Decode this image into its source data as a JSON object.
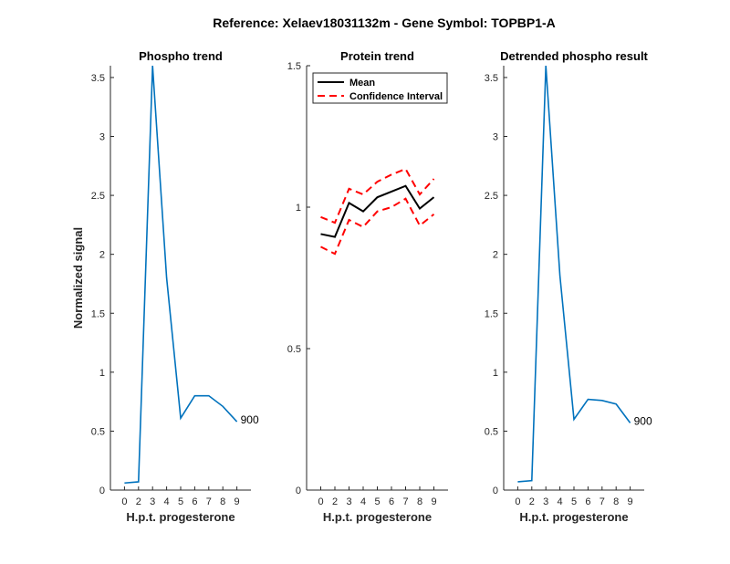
{
  "figure_title": "Reference:  Xelaev18031132m - Gene Symbol:  TOPBP1-A",
  "chart_data": [
    {
      "type": "line",
      "title": "Phospho trend",
      "xlabel": "H.p.t. progesterone",
      "ylabel": "Normalized signal",
      "xticks": [
        "0",
        "2",
        "3",
        "4",
        "5",
        "6",
        "7",
        "8",
        "9"
      ],
      "ylim": [
        0,
        3.6
      ],
      "yticks": [
        "0",
        "0.5",
        "1",
        "1.5",
        "2",
        "2.5",
        "3",
        "3.5"
      ],
      "series": [
        {
          "values": [
            0.06,
            0.07,
            3.6,
            1.8,
            0.61,
            0.8,
            0.8,
            0.71,
            0.58
          ],
          "color": "#0072BD"
        }
      ],
      "annotation": "900"
    },
    {
      "type": "line",
      "title": "Protein trend",
      "xlabel": "H.p.t. progesterone",
      "ylabel": "",
      "xticks": [
        "0",
        "2",
        "3",
        "4",
        "5",
        "6",
        "7",
        "8",
        "9"
      ],
      "ylim": [
        0,
        1.5
      ],
      "yticks": [
        "0",
        "0.5",
        "1",
        "1.5"
      ],
      "legend": {
        "location": "top-left",
        "entries": [
          "Mean",
          "Confidence Interval"
        ]
      },
      "series": [
        {
          "name": "Mean",
          "values": [
            0.905,
            0.895,
            1.015,
            0.985,
            1.035,
            1.055,
            1.075,
            0.995,
            1.035
          ],
          "color": "#000000",
          "style": "solid"
        },
        {
          "name": "Confidence Interval",
          "values": [
            0.965,
            0.945,
            1.065,
            1.045,
            1.09,
            1.115,
            1.135,
            1.045,
            1.1
          ],
          "color": "#ff0000",
          "style": "dashed"
        },
        {
          "name": "Confidence Interval",
          "values": [
            0.86,
            0.835,
            0.955,
            0.93,
            0.985,
            1.0,
            1.03,
            0.935,
            0.975
          ],
          "color": "#ff0000",
          "style": "dashed"
        }
      ]
    },
    {
      "type": "line",
      "title": "Detrended phospho result",
      "xlabel": "H.p.t. progesterone",
      "ylabel": "",
      "xticks": [
        "0",
        "2",
        "3",
        "4",
        "5",
        "6",
        "7",
        "8",
        "9"
      ],
      "ylim": [
        0,
        3.6
      ],
      "yticks": [
        "0",
        "0.5",
        "1",
        "1.5",
        "2",
        "2.5",
        "3",
        "3.5"
      ],
      "series": [
        {
          "values": [
            0.07,
            0.08,
            3.6,
            1.82,
            0.6,
            0.77,
            0.76,
            0.73,
            0.57
          ],
          "color": "#0072BD"
        }
      ],
      "annotation": "900"
    }
  ]
}
